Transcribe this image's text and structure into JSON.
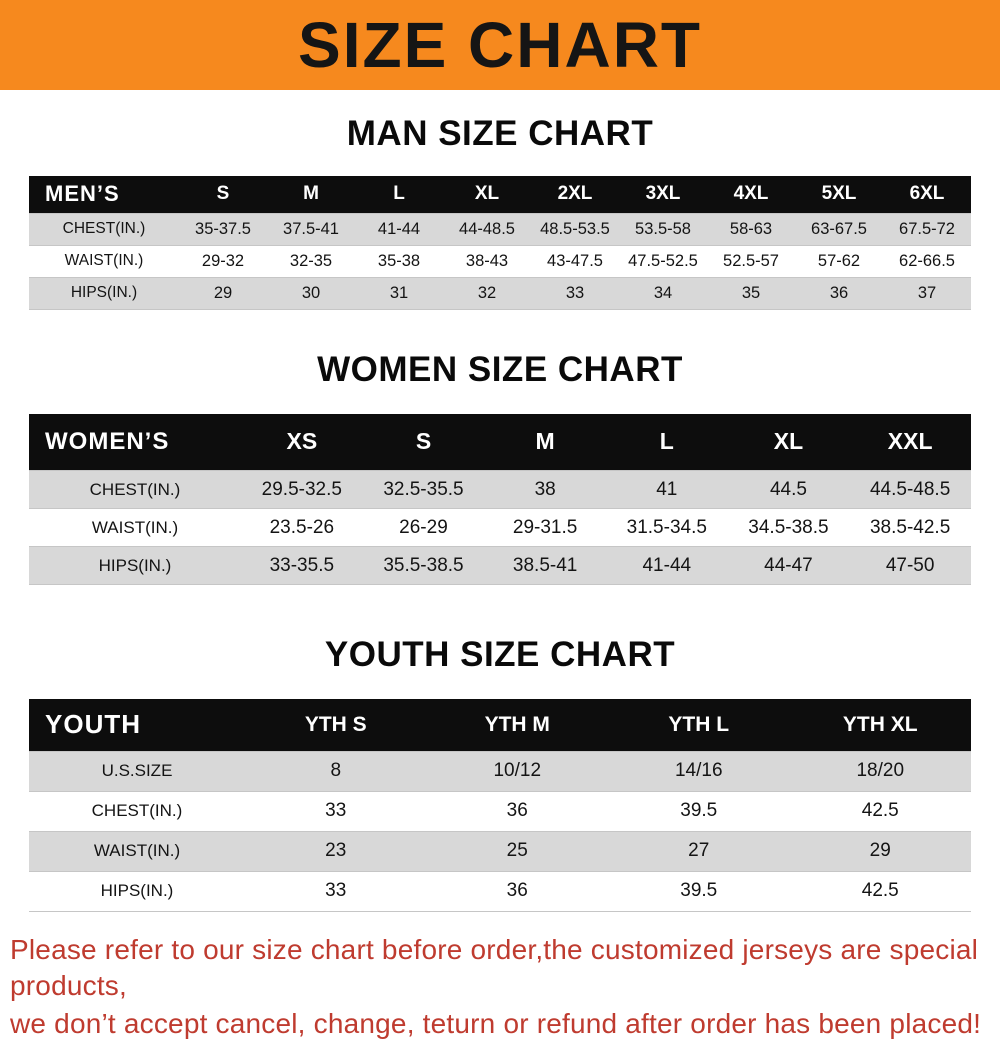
{
  "banner": {
    "title": "SIZE CHART"
  },
  "colors": {
    "orange": "#f6891e",
    "header": "#0d0d0d",
    "row_gray": "#d8d8d8",
    "note_red": "#bf3b2f"
  },
  "chart_data": [
    {
      "type": "table",
      "title": "MAN SIZE CHART",
      "header": [
        "MEN’S",
        "S",
        "M",
        "L",
        "XL",
        "2XL",
        "3XL",
        "4XL",
        "5XL",
        "6XL"
      ],
      "rows": [
        [
          "CHEST(IN.)",
          "35-37.5",
          "37.5-41",
          "41-44",
          "44-48.5",
          "48.5-53.5",
          "53.5-58",
          "58-63",
          "63-67.5",
          "67.5-72"
        ],
        [
          "WAIST(IN.)",
          "29-32",
          "32-35",
          "35-38",
          "38-43",
          "43-47.5",
          "47.5-52.5",
          "52.5-57",
          "57-62",
          "62-66.5"
        ],
        [
          "HIPS(IN.)",
          "29",
          "30",
          "31",
          "32",
          "33",
          "34",
          "35",
          "36",
          "37"
        ]
      ]
    },
    {
      "type": "table",
      "title": "WOMEN SIZE CHART",
      "header": [
        "WOMEN’S",
        "XS",
        "S",
        "M",
        "L",
        "XL",
        "XXL"
      ],
      "rows": [
        [
          "CHEST(IN.)",
          "29.5-32.5",
          "32.5-35.5",
          "38",
          "41",
          "44.5",
          "44.5-48.5"
        ],
        [
          "WAIST(IN.)",
          "23.5-26",
          "26-29",
          "29-31.5",
          "31.5-34.5",
          "34.5-38.5",
          "38.5-42.5"
        ],
        [
          "HIPS(IN.)",
          "33-35.5",
          "35.5-38.5",
          "38.5-41",
          "41-44",
          "44-47",
          "47-50"
        ]
      ]
    },
    {
      "type": "table",
      "title": "YOUTH SIZE CHART",
      "header": [
        "YOUTH",
        "YTH S",
        "YTH M",
        "YTH L",
        "YTH XL"
      ],
      "rows": [
        [
          "U.S.SIZE",
          "8",
          "10/12",
          "14/16",
          "18/20"
        ],
        [
          "CHEST(IN.)",
          "33",
          "36",
          "39.5",
          "42.5"
        ],
        [
          "WAIST(IN.)",
          "23",
          "25",
          "27",
          "29"
        ],
        [
          "HIPS(IN.)",
          "33",
          "36",
          "39.5",
          "42.5"
        ]
      ]
    }
  ],
  "footer": {
    "line1": "Please refer to our size chart before order,the customized jerseys are special products,",
    "line2": "we don’t accept cancel, change, teturn or refund after order has been placed!"
  }
}
